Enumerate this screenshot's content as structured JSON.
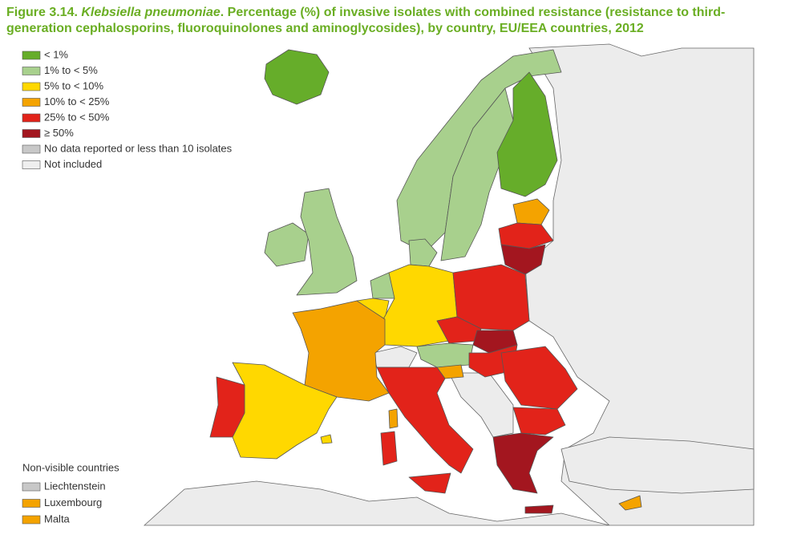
{
  "figure": {
    "label": "Figure 3.14.",
    "organism": "Klebsiella pneumoniae",
    "title": ". Percentage (%) of invasive isolates with combined resistance (resistance to third-generation cephalosporins, fluoroquinolones and aminoglycosides), by country, EU/EEA countries, 2012"
  },
  "legend": [
    {
      "label": "< 1%",
      "color": "#66ad2a"
    },
    {
      "label": "1% to < 5%",
      "color": "#a8d08d"
    },
    {
      "label": "5% to < 10%",
      "color": "#ffd800"
    },
    {
      "label": "10% to < 25%",
      "color": "#f4a300"
    },
    {
      "label": "25% to < 50%",
      "color": "#e2231a"
    },
    {
      "label": "≥ 50%",
      "color": "#a3161f"
    },
    {
      "label": "No data reported or less than 10 isolates",
      "color": "#c8c8c8"
    },
    {
      "label": "Not included",
      "color": "#efefef"
    }
  ],
  "non_visible": {
    "title": "Non-visible countries",
    "countries": [
      {
        "name": "Liechtenstein",
        "color": "#c8c8c8"
      },
      {
        "name": "Luxembourg",
        "color": "#f4a300"
      },
      {
        "name": "Malta",
        "color": "#f4a300"
      }
    ]
  }
}
